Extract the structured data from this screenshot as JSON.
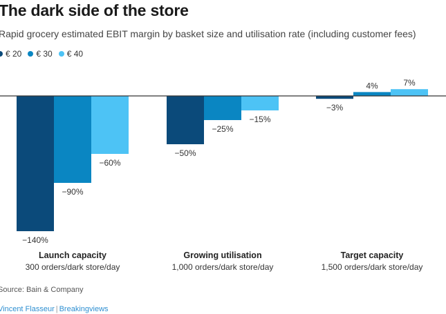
{
  "title": "The dark side of the store",
  "subtitle": "Rapid grocery estimated EBIT margin by basket size and utilisation rate (including customer fees)",
  "source": "Source: Bain & Company",
  "credit": {
    "author": "Vincent Flasseur",
    "outlet": "Breakingviews",
    "separator": "|"
  },
  "chart_data": {
    "type": "bar",
    "categories": [
      "Launch capacity",
      "Growing utilisation",
      "Target capacity"
    ],
    "category_sublabels": [
      "300 orders/dark store/day",
      "1,000 orders/dark store/day",
      "1,500 orders/dark store/day"
    ],
    "series": [
      {
        "name": "€ 20",
        "values": [
          -140,
          -50,
          -3
        ],
        "labels": [
          "−140%",
          "−50%",
          "−3%"
        ],
        "color": "#0b4a7a"
      },
      {
        "name": "€ 30",
        "values": [
          -90,
          -25,
          4
        ],
        "labels": [
          "−90%",
          "−25%",
          "4%"
        ],
        "color": "#0a86c2"
      },
      {
        "name": "€ 40",
        "values": [
          -60,
          -15,
          7
        ],
        "labels": [
          "−60%",
          "−15%",
          "7%"
        ],
        "color": "#4dc3f5"
      }
    ],
    "ylim": [
      -140,
      7
    ],
    "legend_position": "top-left",
    "grid": false,
    "baseline_color": "#333333"
  }
}
